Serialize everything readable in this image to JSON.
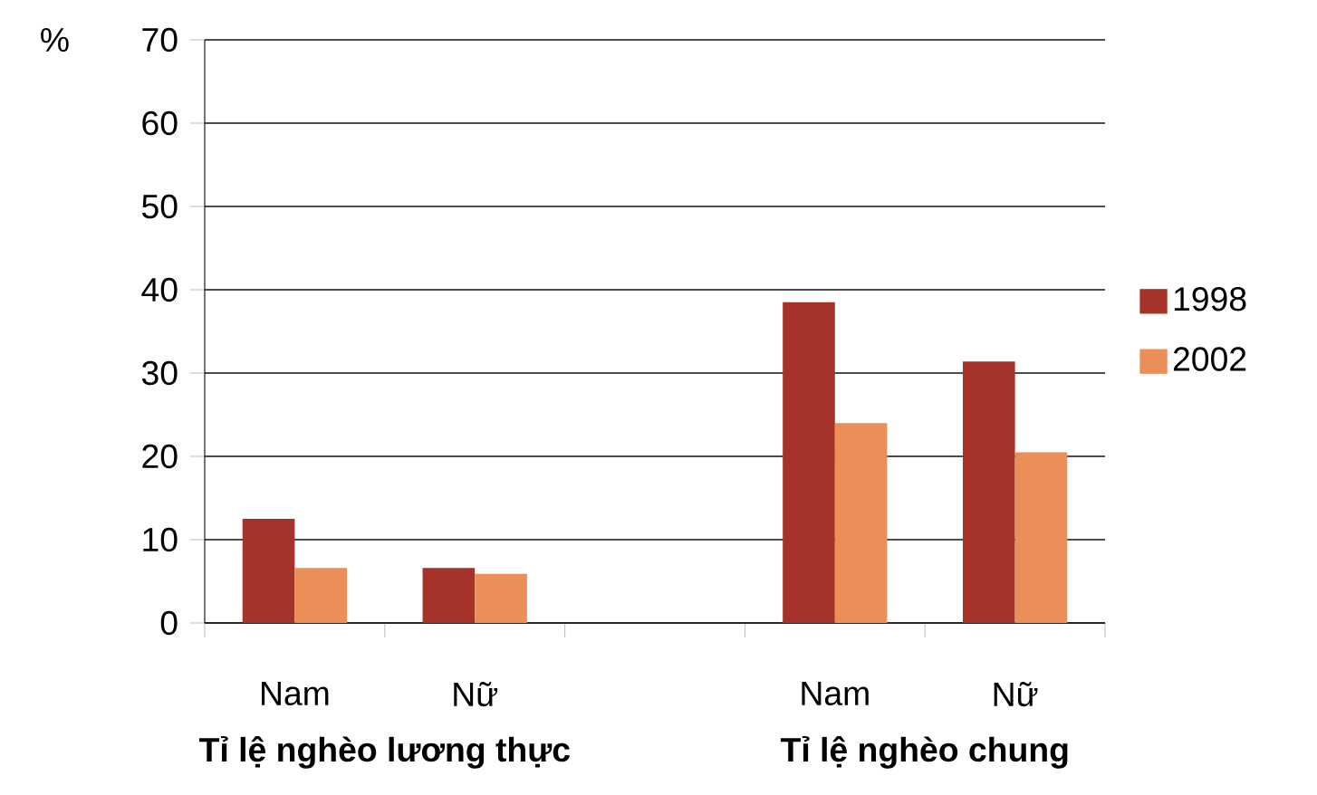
{
  "chart_data": {
    "type": "bar",
    "ylabel": "%",
    "categories": [
      "Nam",
      "Nữ",
      null,
      "Nam",
      "Nữ"
    ],
    "series": [
      {
        "name": "1998",
        "color": "#a5332a",
        "values": [
          12.5,
          6.6,
          null,
          38.5,
          31.4
        ]
      },
      {
        "name": "2002",
        "color": "#eb8f58",
        "values": [
          6.6,
          5.9,
          null,
          24.0,
          20.5
        ]
      }
    ],
    "ylim": [
      0,
      70
    ],
    "yticks": [
      0,
      10,
      20,
      30,
      40,
      50,
      60,
      70
    ],
    "grid": "y",
    "legend": "right",
    "annotations": [
      "Tỉ lệ nghèo lương thực",
      "Tỉ lệ nghèo chung"
    ]
  }
}
